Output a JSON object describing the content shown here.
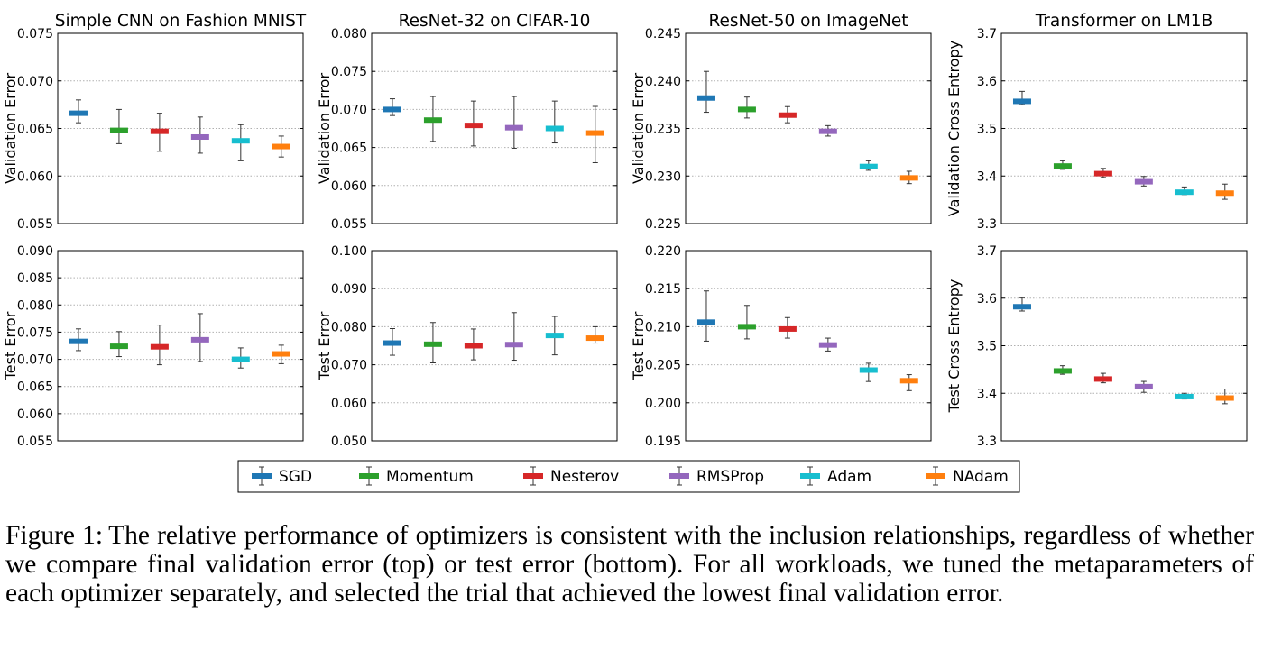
{
  "legend": {
    "items": [
      {
        "name": "SGD",
        "color": "#1f77b4"
      },
      {
        "name": "Momentum",
        "color": "#2ca02c"
      },
      {
        "name": "Nesterov",
        "color": "#d62728"
      },
      {
        "name": "RMSProp",
        "color": "#9467bd"
      },
      {
        "name": "Adam",
        "color": "#17becf"
      },
      {
        "name": "NAdam",
        "color": "#ff7f0e"
      }
    ]
  },
  "caption": {
    "label": "Figure 1:",
    "text": "The relative performance of optimizers is consistent with the inclusion relationships, regardless of whether we compare final validation error (top) or test error (bottom). For all workloads, we tuned the metaparameters of each optimizer separately, and selected the trial that achieved the lowest final validation error."
  },
  "chart_data": [
    {
      "type": "errorbar",
      "title": "Simple CNN on Fashion MNIST",
      "ylabel": "Validation Error",
      "ylim": [
        0.055,
        0.075
      ],
      "yticks": [
        "0.055",
        "0.060",
        "0.065",
        "0.070",
        "0.075"
      ],
      "grid": "y",
      "series": [
        {
          "name": "SGD",
          "value": 0.0666,
          "low": 0.0656,
          "high": 0.068
        },
        {
          "name": "Momentum",
          "value": 0.0648,
          "low": 0.0634,
          "high": 0.067
        },
        {
          "name": "Nesterov",
          "value": 0.0647,
          "low": 0.0626,
          "high": 0.0666
        },
        {
          "name": "RMSProp",
          "value": 0.0641,
          "low": 0.0624,
          "high": 0.0662
        },
        {
          "name": "Adam",
          "value": 0.0637,
          "low": 0.0616,
          "high": 0.0654
        },
        {
          "name": "NAdam",
          "value": 0.0631,
          "low": 0.062,
          "high": 0.0642
        }
      ]
    },
    {
      "type": "errorbar",
      "title": "ResNet-32 on CIFAR-10",
      "ylabel": "Validation Error",
      "ylim": [
        0.055,
        0.08
      ],
      "yticks": [
        "0.055",
        "0.060",
        "0.065",
        "0.070",
        "0.075",
        "0.080"
      ],
      "grid": "y",
      "series": [
        {
          "name": "SGD",
          "value": 0.07,
          "low": 0.0692,
          "high": 0.0714
        },
        {
          "name": "Momentum",
          "value": 0.0686,
          "low": 0.0658,
          "high": 0.0717
        },
        {
          "name": "Nesterov",
          "value": 0.0679,
          "low": 0.0652,
          "high": 0.0711
        },
        {
          "name": "RMSProp",
          "value": 0.0676,
          "low": 0.0649,
          "high": 0.0717
        },
        {
          "name": "Adam",
          "value": 0.0675,
          "low": 0.0656,
          "high": 0.0711
        },
        {
          "name": "NAdam",
          "value": 0.0669,
          "low": 0.063,
          "high": 0.0704
        }
      ]
    },
    {
      "type": "errorbar",
      "title": "ResNet-50 on ImageNet",
      "ylabel": "Validation Error",
      "ylim": [
        0.225,
        0.245
      ],
      "yticks": [
        "0.225",
        "0.230",
        "0.235",
        "0.240",
        "0.245"
      ],
      "grid": "y",
      "series": [
        {
          "name": "SGD",
          "value": 0.2382,
          "low": 0.2367,
          "high": 0.241
        },
        {
          "name": "Momentum",
          "value": 0.237,
          "low": 0.2361,
          "high": 0.2383
        },
        {
          "name": "Nesterov",
          "value": 0.2364,
          "low": 0.2356,
          "high": 0.2373
        },
        {
          "name": "RMSProp",
          "value": 0.2347,
          "low": 0.2342,
          "high": 0.2353
        },
        {
          "name": "Adam",
          "value": 0.231,
          "low": 0.2306,
          "high": 0.2316
        },
        {
          "name": "NAdam",
          "value": 0.2298,
          "low": 0.2292,
          "high": 0.2305
        }
      ]
    },
    {
      "type": "errorbar",
      "title": "Transformer on LM1B",
      "ylabel": "Validation Cross Entropy",
      "ylim": [
        3.3,
        3.7
      ],
      "yticks": [
        "3.3",
        "3.4",
        "3.5",
        "3.6",
        "3.7"
      ],
      "grid": "y",
      "series": [
        {
          "name": "SGD",
          "value": 3.557,
          "low": 3.55,
          "high": 3.578
        },
        {
          "name": "Momentum",
          "value": 3.421,
          "low": 3.414,
          "high": 3.432
        },
        {
          "name": "Nesterov",
          "value": 3.405,
          "low": 3.397,
          "high": 3.416
        },
        {
          "name": "RMSProp",
          "value": 3.388,
          "low": 3.379,
          "high": 3.399
        },
        {
          "name": "Adam",
          "value": 3.366,
          "low": 3.361,
          "high": 3.377
        },
        {
          "name": "NAdam",
          "value": 3.364,
          "low": 3.351,
          "high": 3.383
        }
      ]
    },
    {
      "type": "errorbar",
      "title": "",
      "ylabel": "Test Error",
      "ylim": [
        0.055,
        0.09
      ],
      "yticks": [
        "0.055",
        "0.060",
        "0.065",
        "0.070",
        "0.075",
        "0.080",
        "0.085",
        "0.090"
      ],
      "grid": "y",
      "series": [
        {
          "name": "SGD",
          "value": 0.0733,
          "low": 0.0716,
          "high": 0.0756
        },
        {
          "name": "Momentum",
          "value": 0.0724,
          "low": 0.0705,
          "high": 0.0751
        },
        {
          "name": "Nesterov",
          "value": 0.0723,
          "low": 0.069,
          "high": 0.0763
        },
        {
          "name": "RMSProp",
          "value": 0.0736,
          "low": 0.0696,
          "high": 0.0784
        },
        {
          "name": "Adam",
          "value": 0.07,
          "low": 0.0684,
          "high": 0.0721
        },
        {
          "name": "NAdam",
          "value": 0.071,
          "low": 0.0692,
          "high": 0.0726
        }
      ]
    },
    {
      "type": "errorbar",
      "title": "",
      "ylabel": "Test Error",
      "ylim": [
        0.05,
        0.1
      ],
      "yticks": [
        "0.050",
        "0.060",
        "0.070",
        "0.080",
        "0.090",
        "0.100"
      ],
      "grid": "y",
      "series": [
        {
          "name": "SGD",
          "value": 0.0757,
          "low": 0.0725,
          "high": 0.0795
        },
        {
          "name": "Momentum",
          "value": 0.0754,
          "low": 0.0705,
          "high": 0.0811
        },
        {
          "name": "Nesterov",
          "value": 0.075,
          "low": 0.0713,
          "high": 0.0794
        },
        {
          "name": "RMSProp",
          "value": 0.0753,
          "low": 0.0712,
          "high": 0.0837
        },
        {
          "name": "Adam",
          "value": 0.0777,
          "low": 0.0726,
          "high": 0.0827
        },
        {
          "name": "NAdam",
          "value": 0.077,
          "low": 0.0757,
          "high": 0.08
        }
      ]
    },
    {
      "type": "errorbar",
      "title": "",
      "ylabel": "Test Error",
      "ylim": [
        0.195,
        0.22
      ],
      "yticks": [
        "0.195",
        "0.200",
        "0.205",
        "0.210",
        "0.215",
        "0.220"
      ],
      "grid": "y",
      "series": [
        {
          "name": "SGD",
          "value": 0.2106,
          "low": 0.2081,
          "high": 0.2147
        },
        {
          "name": "Momentum",
          "value": 0.21,
          "low": 0.2084,
          "high": 0.2128
        },
        {
          "name": "Nesterov",
          "value": 0.2097,
          "low": 0.2085,
          "high": 0.2112
        },
        {
          "name": "RMSProp",
          "value": 0.2076,
          "low": 0.2068,
          "high": 0.2085
        },
        {
          "name": "Adam",
          "value": 0.2043,
          "low": 0.2028,
          "high": 0.2052
        },
        {
          "name": "NAdam",
          "value": 0.2029,
          "low": 0.2016,
          "high": 0.2037
        }
      ]
    },
    {
      "type": "errorbar",
      "title": "",
      "ylabel": "Test Cross Entropy",
      "ylim": [
        3.3,
        3.7
      ],
      "yticks": [
        "3.3",
        "3.4",
        "3.5",
        "3.6",
        "3.7"
      ],
      "grid": "y",
      "series": [
        {
          "name": "SGD",
          "value": 3.582,
          "low": 3.573,
          "high": 3.601
        },
        {
          "name": "Momentum",
          "value": 3.447,
          "low": 3.44,
          "high": 3.458
        },
        {
          "name": "Nesterov",
          "value": 3.43,
          "low": 3.422,
          "high": 3.442
        },
        {
          "name": "RMSProp",
          "value": 3.414,
          "low": 3.402,
          "high": 3.425
        },
        {
          "name": "Adam",
          "value": 3.393,
          "low": 3.388,
          "high": 3.4
        },
        {
          "name": "NAdam",
          "value": 3.39,
          "low": 3.378,
          "high": 3.409
        }
      ]
    }
  ]
}
